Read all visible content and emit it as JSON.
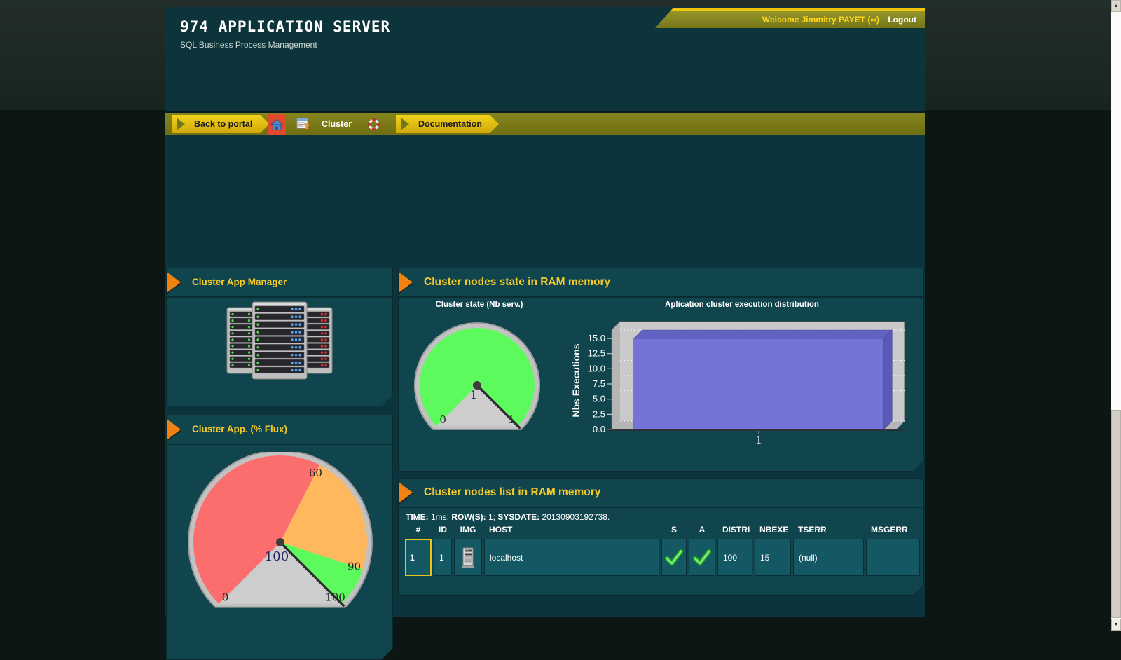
{
  "header": {
    "title": "974 APPLICATION SERVER",
    "subtitle": "SQL Business Process Management"
  },
  "user_bar": {
    "welcome": "Welcome Jimmitry PAYET (∞)",
    "logout": "Logout"
  },
  "nav": {
    "back_label": "Back to portal",
    "home_icon": "home-icon",
    "app_icon": "application-icon",
    "cluster_label": "Cluster",
    "help_icon": "life-ring-icon",
    "documentation_label": "Documentation"
  },
  "panels": {
    "app_manager_title": "Cluster App Manager",
    "flux_title": "Cluster App. (% Flux)",
    "nodes_state_title": "Cluster nodes state in RAM memory",
    "nodes_list_title": "Cluster nodes list in RAM memory"
  },
  "status_line": {
    "time_label": "TIME:",
    "time_value": " 1ms; ",
    "rows_label": "ROW(S):",
    "rows_value": " 1; ",
    "sysdate_label": "SYSDATE:",
    "sysdate_value": " 20130903192738."
  },
  "table": {
    "headers": [
      "#",
      "ID",
      "IMG",
      "HOST",
      "S",
      "A",
      "DISTRI",
      "NBEXE",
      "TSERR",
      "MSGERR"
    ],
    "rows": [
      {
        "num": "1",
        "id": "1",
        "img_icon": "server-icon",
        "host": "localhost",
        "s_icon": "check-icon",
        "a_icon": "check-icon",
        "distri": "100",
        "nbexe": "15",
        "tserr": "(null)",
        "msgerr": ""
      }
    ]
  },
  "colors": {
    "accent_yellow": "#f6cb28",
    "nav_yellow": "#e8c515",
    "arrow_orange": "#ef8211",
    "panel_teal": "#10454e",
    "bar_purple": "#7474d6",
    "gauge_red": "#fc6e6e",
    "gauge_orange": "#ffb85e",
    "gauge_green": "#5dfa5d",
    "status_ok_green": "#2fb32f"
  },
  "chart_data": [
    {
      "type": "gauge",
      "title": "Cluster state (Nb serv.)",
      "min": 0,
      "max": 1,
      "value": 1,
      "sectors": [
        {
          "from": 0,
          "to": 1,
          "color": "#5dfa5d"
        }
      ],
      "ticks": [
        {
          "value": 0,
          "label": "0"
        },
        {
          "value": 1,
          "label": "1"
        }
      ],
      "center_label": "1",
      "needle_at": 1,
      "dial_sweep_deg": 270
    },
    {
      "type": "gauge",
      "title": "Cluster App. (% Flux)",
      "min": 0,
      "max": 100,
      "value": 100,
      "sectors": [
        {
          "from": 0,
          "to": 60,
          "color": "#fc6e6e"
        },
        {
          "from": 60,
          "to": 90,
          "color": "#ffb85e"
        },
        {
          "from": 90,
          "to": 100,
          "color": "#5dfa5d"
        }
      ],
      "ticks": [
        {
          "value": 0,
          "label": "0"
        },
        {
          "value": 60,
          "label": "60"
        },
        {
          "value": 90,
          "label": "90"
        },
        {
          "value": 100,
          "label": "100"
        }
      ],
      "center_label": "100",
      "needle_at": 100,
      "dial_sweep_deg": 270
    },
    {
      "type": "bar",
      "title": "Aplication cluster execution distribution",
      "categories": [
        "1"
      ],
      "values": [
        15
      ],
      "ylabel": "Nbs Executions",
      "xlabel": "",
      "ylim": [
        0,
        15
      ],
      "yticks": [
        0,
        2.5,
        5,
        7.5,
        10,
        12.5,
        15
      ],
      "bar_color": "#7474d6",
      "grid": "white-dashed-horizontal",
      "legend": "none",
      "style": "3d-bar-gray-walls"
    }
  ]
}
